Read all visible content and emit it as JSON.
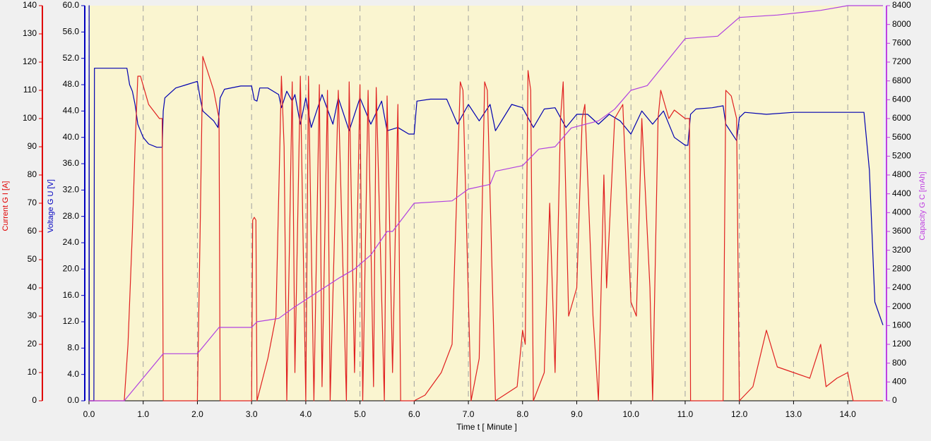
{
  "chart_data": {
    "type": "line",
    "xlabel": "Time  t  [ Minute ]",
    "ylabel": "Current G  I  [A]",
    "y3label": "Voltage G  U  [V]",
    "y2label": "Capacity G  C  [mAh]",
    "xlim": [
      0,
      14.65
    ],
    "xticks": [
      {
        "value": 0,
        "label": "0.0"
      },
      {
        "value": 1,
        "label": "1.0"
      },
      {
        "value": 2,
        "label": "2.0"
      },
      {
        "value": 3,
        "label": "3.0"
      },
      {
        "value": 4,
        "label": "4.0"
      },
      {
        "value": 5,
        "label": "5.0"
      },
      {
        "value": 6,
        "label": "6.0"
      },
      {
        "value": 7,
        "label": "7.0"
      },
      {
        "value": 8,
        "label": "8.0"
      },
      {
        "value": 9,
        "label": "9.0"
      },
      {
        "value": 10,
        "label": "10.0"
      },
      {
        "value": 11,
        "label": "11.0"
      },
      {
        "value": 12,
        "label": "12.0"
      },
      {
        "value": 13,
        "label": "13.0"
      },
      {
        "value": 14,
        "label": "14.0"
      }
    ],
    "ylim": [
      0,
      140
    ],
    "yticks": [
      0,
      10,
      20,
      30,
      40,
      50,
      60,
      70,
      80,
      90,
      100,
      110,
      120,
      130,
      140
    ],
    "y3lim": [
      0,
      60
    ],
    "y3ticks": [
      {
        "value": 0,
        "label": "0.0"
      },
      {
        "value": 4,
        "label": "4.0"
      },
      {
        "value": 8,
        "label": "8.0"
      },
      {
        "value": 12,
        "label": "12.0"
      },
      {
        "value": 16,
        "label": "16.0"
      },
      {
        "value": 20,
        "label": "20.0"
      },
      {
        "value": 24,
        "label": "24.0"
      },
      {
        "value": 28,
        "label": "28.0"
      },
      {
        "value": 32,
        "label": "32.0"
      },
      {
        "value": 36,
        "label": "36.0"
      },
      {
        "value": 40,
        "label": "40.0"
      },
      {
        "value": 44,
        "label": "44.0"
      },
      {
        "value": 48,
        "label": "48.0"
      },
      {
        "value": 52,
        "label": "52.0"
      },
      {
        "value": 56,
        "label": "56.0"
      },
      {
        "value": 60,
        "label": "60.0"
      }
    ],
    "y2lim": [
      0,
      8400
    ],
    "y2ticks": [
      0,
      400,
      800,
      1200,
      1600,
      2000,
      2400,
      2800,
      3200,
      3600,
      4000,
      4400,
      4800,
      5200,
      5600,
      6000,
      6400,
      6800,
      7200,
      7600,
      8000,
      8400
    ],
    "grid": true,
    "axis_colors": {
      "y": "#e00000",
      "y3": "#0000c0",
      "y2": "#c040e0"
    },
    "series": [
      {
        "axis": "y3",
        "color": "#0000b0",
        "x": [
          0,
          0.003,
          0.006,
          0.09,
          0.1,
          0.7,
          0.75,
          0.8,
          0.85,
          0.9,
          1.0,
          1.1,
          1.25,
          1.35,
          1.37,
          1.4,
          1.6,
          1.8,
          2.0,
          2.05,
          2.1,
          2.3,
          2.38,
          2.42,
          2.5,
          2.8,
          3.0,
          3.05,
          3.1,
          3.15,
          3.3,
          3.5,
          3.55,
          3.65,
          3.75,
          3.8,
          3.9,
          4.0,
          4.1,
          4.3,
          4.5,
          4.6,
          4.8,
          5.0,
          5.2,
          5.4,
          5.5,
          5.7,
          5.9,
          6.0,
          6.05,
          6.3,
          6.6,
          6.8,
          7.0,
          7.2,
          7.4,
          7.5,
          7.8,
          8.0,
          8.2,
          8.4,
          8.6,
          8.8,
          9.0,
          9.2,
          9.4,
          9.6,
          9.8,
          10.0,
          10.2,
          10.4,
          10.6,
          10.8,
          11.0,
          11.05,
          11.1,
          11.2,
          11.5,
          11.7,
          11.75,
          11.95,
          12.0,
          12.1,
          12.5,
          13.0,
          13.5,
          14.0,
          14.3,
          14.4,
          14.5,
          14.65
        ],
        "values": [
          0,
          60,
          0,
          0,
          50.5,
          50.5,
          48,
          47,
          45,
          42,
          40,
          39,
          38.5,
          38.5,
          44,
          46,
          47.5,
          48,
          48.5,
          46,
          44,
          42.5,
          41.5,
          46,
          47.3,
          47.8,
          47.8,
          45.7,
          45.5,
          47.5,
          47.5,
          46.5,
          44.5,
          47,
          45.5,
          46.5,
          42,
          46,
          41.5,
          46.5,
          42,
          46,
          41,
          46,
          42,
          45.5,
          41,
          41.5,
          40.5,
          40.5,
          45.5,
          45.8,
          45.8,
          42,
          45,
          42.5,
          45,
          41,
          45,
          44.5,
          41.5,
          44.3,
          44.5,
          41.5,
          43.5,
          43.5,
          42,
          43.5,
          42.5,
          40.5,
          44,
          42,
          44,
          40,
          38.8,
          38.8,
          43.5,
          44.3,
          44.5,
          44.8,
          42,
          39.5,
          43,
          43.8,
          43.5,
          43.8,
          43.8,
          43.8,
          43.8,
          35,
          15,
          11.5
        ]
      },
      {
        "axis": "y",
        "color": "#e02020",
        "x": [
          0,
          0.65,
          0.72,
          0.8,
          0.85,
          0.9,
          0.95,
          1.1,
          1.3,
          1.35,
          1.37,
          2.0,
          2.05,
          2.1,
          2.3,
          2.4,
          2.42,
          3.0,
          3.02,
          3.05,
          3.08,
          3.1,
          3.3,
          3.45,
          3.55,
          3.6,
          3.65,
          3.75,
          3.8,
          3.9,
          4.0,
          4.05,
          4.15,
          4.25,
          4.3,
          4.4,
          4.45,
          4.6,
          4.75,
          4.8,
          4.9,
          5.0,
          5.05,
          5.15,
          5.25,
          5.3,
          5.45,
          5.5,
          5.6,
          5.7,
          5.75,
          6.0,
          6.2,
          6.5,
          6.7,
          6.85,
          6.9,
          7.05,
          7.2,
          7.3,
          7.35,
          7.5,
          7.9,
          8.0,
          8.05,
          8.1,
          8.15,
          8.2,
          8.4,
          8.5,
          8.6,
          8.7,
          8.75,
          8.85,
          9.0,
          9.1,
          9.15,
          9.3,
          9.4,
          9.5,
          9.55,
          9.7,
          9.85,
          10.0,
          10.1,
          10.2,
          10.35,
          10.4,
          10.5,
          10.55,
          10.7,
          10.8,
          11.0,
          11.08,
          11.1,
          11.7,
          11.75,
          11.85,
          11.95,
          12.0,
          12.25,
          12.5,
          12.7,
          13.0,
          13.3,
          13.5,
          13.6,
          13.8,
          14.0,
          14.1,
          14.65
        ],
        "values": [
          0,
          0,
          20,
          60,
          90,
          115,
          115,
          105,
          100,
          100,
          0,
          0,
          60,
          122,
          110,
          100,
          0,
          0,
          64,
          65,
          64,
          0,
          15,
          30,
          115,
          90,
          0,
          113,
          10,
          115,
          0,
          115,
          0,
          112,
          5,
          110,
          0,
          110,
          0,
          113,
          10,
          112,
          0,
          110,
          5,
          111,
          0,
          108,
          10,
          105,
          0,
          0,
          2,
          10,
          20,
          113,
          110,
          0,
          15,
          113,
          110,
          0,
          5,
          25,
          20,
          117,
          110,
          0,
          10,
          70,
          10,
          100,
          113,
          30,
          40,
          100,
          105,
          30,
          0,
          80,
          40,
          100,
          105,
          35,
          30,
          100,
          40,
          0,
          100,
          110,
          100,
          103,
          100,
          100,
          0,
          0,
          110,
          108,
          100,
          0,
          5,
          25,
          12,
          10,
          8,
          20,
          5,
          8,
          10,
          0,
          0
        ]
      },
      {
        "axis": "y2",
        "color": "#b040e0",
        "x": [
          0,
          0.65,
          1.37,
          2.0,
          2.4,
          3.0,
          3.1,
          3.5,
          3.8,
          4.2,
          4.6,
          4.9,
          5.2,
          5.5,
          5.6,
          6.0,
          6.7,
          7.0,
          7.4,
          7.5,
          8.0,
          8.3,
          8.6,
          8.9,
          9.4,
          9.7,
          10.0,
          10.3,
          11.0,
          11.6,
          12.0,
          12.7,
          13.5,
          14.0,
          14.65
        ],
        "values": [
          0,
          0,
          1000,
          1000,
          1560,
          1560,
          1680,
          1750,
          2000,
          2300,
          2600,
          2800,
          3100,
          3600,
          3600,
          4200,
          4250,
          4500,
          4600,
          4880,
          5000,
          5350,
          5400,
          5800,
          5950,
          6200,
          6600,
          6700,
          7700,
          7750,
          8150,
          8200,
          8300,
          8400,
          8400
        ]
      }
    ]
  }
}
